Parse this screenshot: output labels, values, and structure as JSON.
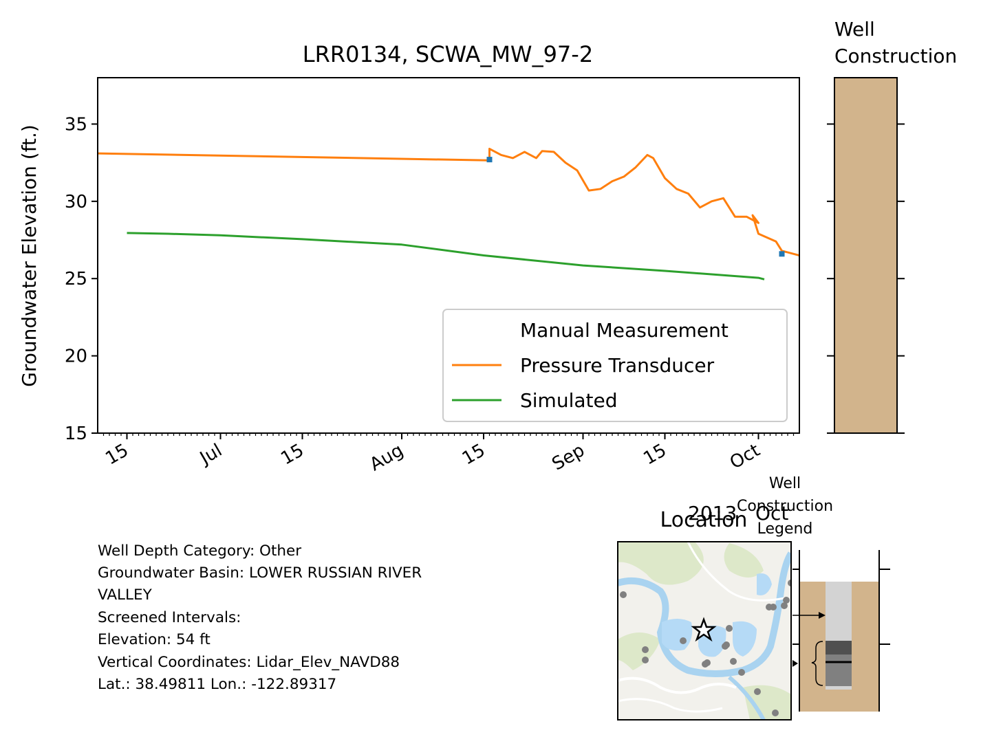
{
  "chart_data": {
    "type": "line",
    "title": "LRR0134, SCWA_MW_97-2",
    "xlabel": "",
    "ylabel": "Groundwater Elevation (ft.)",
    "year_label": "2013",
    "xlim": [
      "2013-06-10",
      "2013-10-08"
    ],
    "ylim": [
      15,
      38
    ],
    "y_ticks": [
      15,
      20,
      25,
      30,
      35
    ],
    "x_ticks": [
      {
        "date": "2013-06-15",
        "label": "15"
      },
      {
        "date": "2013-07-01",
        "label": "Jul"
      },
      {
        "date": "2013-07-15",
        "label": "15"
      },
      {
        "date": "2013-08-01",
        "label": "Aug"
      },
      {
        "date": "2013-08-15",
        "label": "15"
      },
      {
        "date": "2013-09-01",
        "label": "Sep"
      },
      {
        "date": "2013-09-15",
        "label": "15"
      },
      {
        "date": "2013-10-01",
        "label": "Oct"
      }
    ],
    "legend_position": "lower-right",
    "series": [
      {
        "name": "Manual Measurement",
        "style": "marker",
        "color": "#1f77b4",
        "points": [
          {
            "x": "2013-08-16",
            "y": 32.7
          },
          {
            "x": "2013-10-05",
            "y": 26.6
          }
        ]
      },
      {
        "name": "Pressure Transducer",
        "style": "line",
        "color": "#ff7f0e",
        "points": [
          {
            "x": "2013-06-10",
            "y": 33.1
          },
          {
            "x": "2013-08-16",
            "y": 32.65
          },
          {
            "x": "2013-08-16",
            "y": 33.4
          },
          {
            "x": "2013-08-18",
            "y": 33.0
          },
          {
            "x": "2013-08-20",
            "y": 32.8
          },
          {
            "x": "2013-08-22",
            "y": 33.2
          },
          {
            "x": "2013-08-24",
            "y": 32.8
          },
          {
            "x": "2013-08-25",
            "y": 33.25
          },
          {
            "x": "2013-08-27",
            "y": 33.2
          },
          {
            "x": "2013-08-29",
            "y": 32.5
          },
          {
            "x": "2013-08-31",
            "y": 32.0
          },
          {
            "x": "2013-09-02",
            "y": 30.7
          },
          {
            "x": "2013-09-04",
            "y": 30.8
          },
          {
            "x": "2013-09-06",
            "y": 31.3
          },
          {
            "x": "2013-09-08",
            "y": 31.6
          },
          {
            "x": "2013-09-10",
            "y": 32.2
          },
          {
            "x": "2013-09-12",
            "y": 33.0
          },
          {
            "x": "2013-09-13",
            "y": 32.8
          },
          {
            "x": "2013-09-15",
            "y": 31.5
          },
          {
            "x": "2013-09-17",
            "y": 30.8
          },
          {
            "x": "2013-09-19",
            "y": 30.5
          },
          {
            "x": "2013-09-21",
            "y": 29.6
          },
          {
            "x": "2013-09-23",
            "y": 30.0
          },
          {
            "x": "2013-09-25",
            "y": 30.2
          },
          {
            "x": "2013-09-27",
            "y": 29.0
          },
          {
            "x": "2013-09-29",
            "y": 29.0
          },
          {
            "x": "2013-10-01",
            "y": 28.6
          },
          {
            "x": "2013-09-30",
            "y": 29.1
          },
          {
            "x": "2013-10-01",
            "y": 27.9
          },
          {
            "x": "2013-10-04",
            "y": 27.4
          },
          {
            "x": "2013-10-05",
            "y": 26.8
          },
          {
            "x": "2013-10-08",
            "y": 26.5
          }
        ]
      },
      {
        "name": "Simulated",
        "style": "line",
        "color": "#2ca02c",
        "points": [
          {
            "x": "2013-06-15",
            "y": 27.95
          },
          {
            "x": "2013-06-22",
            "y": 27.9
          },
          {
            "x": "2013-07-01",
            "y": 27.8
          },
          {
            "x": "2013-07-15",
            "y": 27.55
          },
          {
            "x": "2013-08-01",
            "y": 27.2
          },
          {
            "x": "2013-08-15",
            "y": 26.5
          },
          {
            "x": "2013-09-01",
            "y": 25.85
          },
          {
            "x": "2013-09-15",
            "y": 25.5
          },
          {
            "x": "2013-10-01",
            "y": 25.05
          },
          {
            "x": "2013-10-02",
            "y": 24.95
          }
        ]
      }
    ]
  },
  "well_construction": {
    "title_line1": "Well",
    "title_line2": "Construction",
    "fill_color": "#d2b48c"
  },
  "info": {
    "lines": [
      "Well Depth Category: Other",
      "Groundwater Basin: LOWER RUSSIAN RIVER",
      "VALLEY",
      "Screened Intervals:",
      "Elevation: 54 ft",
      "Vertical Coordinates: Lidar_Elev_NAVD88",
      "Lat.: 38.49811 Lon.: -122.89317"
    ]
  },
  "location": {
    "title": "Location"
  },
  "legend_panel": {
    "title_line1": "Well",
    "title_line2": "Construction",
    "title_line3": "Legend"
  }
}
